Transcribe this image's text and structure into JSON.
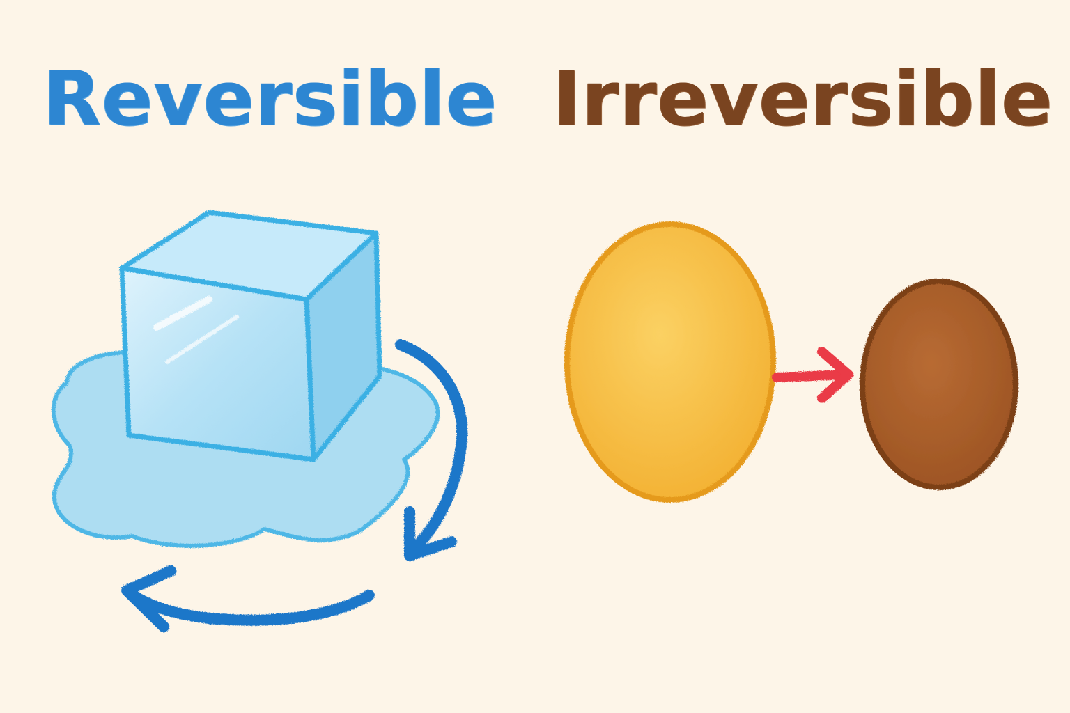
{
  "headings": {
    "reversible": "Reversible",
    "irreversible": "Irreversible"
  },
  "colors": {
    "background": "#fdf5e8",
    "reversible_label": "#2d86d2",
    "irreversible_label": "#7a4420",
    "ice": "#8fd0ee",
    "ice_outline": "#3ab0e4",
    "water": "#a9dcf3",
    "cycle_arrow": "#1f77c9",
    "raw_egg": "#f8bd3c",
    "raw_egg_outline": "#e59a1c",
    "cooked_egg": "#a65c2a",
    "cooked_egg_outline": "#7c3f17",
    "transform_arrow": "#ea3a46"
  },
  "icons": {
    "ice_cube": "ice-cube-icon",
    "water_puddle": "water-puddle-icon",
    "cycle_arrows": "cycle-arrows-icon",
    "raw_egg": "raw-egg-icon",
    "cooked_egg": "cooked-egg-icon",
    "transform_arrow": "right-arrow-icon"
  }
}
